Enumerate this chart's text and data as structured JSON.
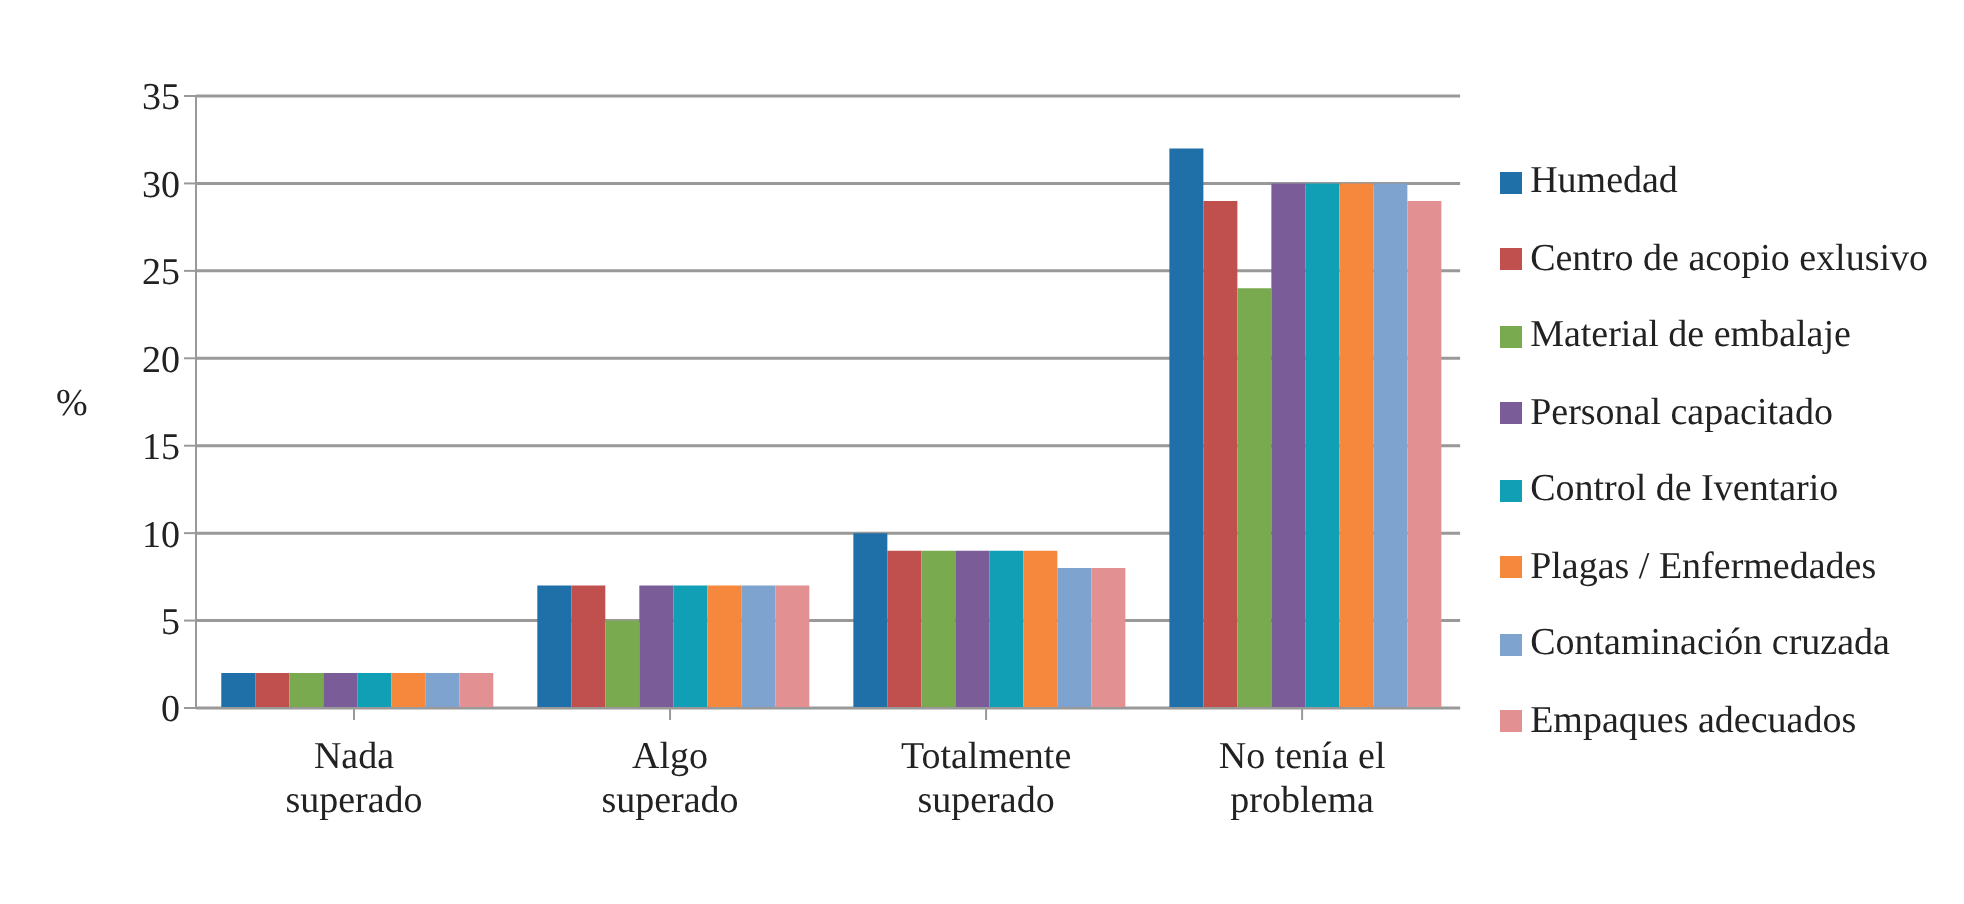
{
  "chart_data": {
    "type": "bar",
    "ylabel": "%",
    "categories": [
      "Nada superado",
      "Algo superado",
      "Totalmente superado",
      "No tenía el problema"
    ],
    "series": [
      {
        "name": "Humedad",
        "color": "#1f6fa8",
        "values": [
          2,
          7,
          10,
          32
        ]
      },
      {
        "name": "Centro de acopio exlusivo",
        "color": "#c0504d",
        "values": [
          2,
          7,
          9,
          29
        ]
      },
      {
        "name": "Material de embalaje",
        "color": "#7aaa4f",
        "values": [
          2,
          5,
          9,
          24
        ]
      },
      {
        "name": "Personal capacitado",
        "color": "#7a5c99",
        "values": [
          2,
          7,
          9,
          30
        ]
      },
      {
        "name": "Control de Iventario",
        "color": "#119fb5",
        "values": [
          2,
          7,
          9,
          30
        ]
      },
      {
        "name": "Plagas / Enfermedades",
        "color": "#f5883c",
        "values": [
          2,
          7,
          9,
          30
        ]
      },
      {
        "name": "Contaminación cruzada",
        "color": "#7fa3cf",
        "values": [
          2,
          7,
          8,
          30
        ]
      },
      {
        "name": "Empaques adecuados",
        "color": "#e39092",
        "values": [
          2,
          7,
          8,
          29
        ]
      }
    ],
    "ylim": [
      0,
      35
    ],
    "yticks": [
      0,
      5,
      10,
      15,
      20,
      25,
      30,
      35
    ],
    "grid": "y",
    "legend": "right"
  }
}
